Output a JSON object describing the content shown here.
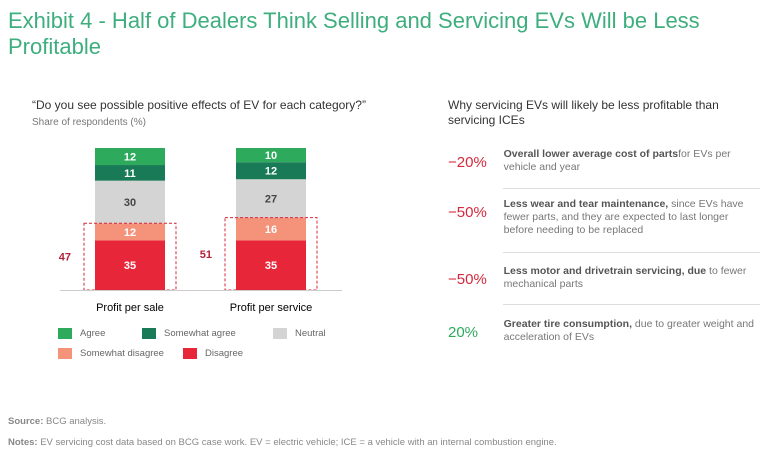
{
  "title": "Exhibit 4 - Half of Dealers Think Selling and Servicing EVs Will be Less Profitable",
  "chart_data": {
    "type": "bar",
    "stacked": true,
    "title": "“Do you see possible positive effects of EV for each category?”",
    "ylabel": "Share of respondents (%)",
    "categories": [
      "Profit per sale",
      "Profit per service"
    ],
    "series": [
      {
        "name": "Disagree",
        "color": "#e8263a",
        "values": [
          35,
          35
        ]
      },
      {
        "name": "Somewhat disagree",
        "color": "#f4937a",
        "values": [
          12,
          16
        ]
      },
      {
        "name": "Neutral",
        "color": "#d4d4d4",
        "values": [
          30,
          27
        ]
      },
      {
        "name": "Somewhat agree",
        "color": "#197a57",
        "values": [
          11,
          12
        ]
      },
      {
        "name": "Agree",
        "color": "#2eaa5c",
        "values": [
          12,
          10
        ]
      }
    ],
    "disagree_totals": [
      "47",
      "51"
    ],
    "legend": [
      "Agree",
      "Somewhat agree",
      "Neutral",
      "Somewhat disagree",
      "Disagree"
    ],
    "legend_placement": "bottom",
    "ylim": [
      0,
      100
    ]
  },
  "right": {
    "title": "Why servicing EVs will likely be less profitable than servicing ICEs",
    "items": [
      {
        "value": "−20%",
        "color": "#d6283c",
        "bold": "Overall lower average cost of parts",
        "rest": "for EVs per vehicle and year"
      },
      {
        "value": "−50%",
        "color": "#d6283c",
        "bold": "Less wear and tear maintenance,",
        "rest": " since EVs have fewer parts, and they are expected to last longer before needing to be replaced"
      },
      {
        "value": "−50%",
        "color": "#d6283c",
        "bold": "Less motor and drivetrain servicing, due",
        "rest": " to fewer mechanical parts"
      },
      {
        "value": "20%",
        "color": "#2eaa5c",
        "bold": "Greater tire consumption,",
        "rest": " due to greater weight and acceleration of EVs"
      }
    ]
  },
  "footer": {
    "source_label": "Source:",
    "source": " BCG analysis.",
    "notes_label": "Notes:",
    "notes": " EV servicing cost data based on BCG case work. EV = electric vehicle; ICE = a vehicle with an internal combustion engine."
  }
}
